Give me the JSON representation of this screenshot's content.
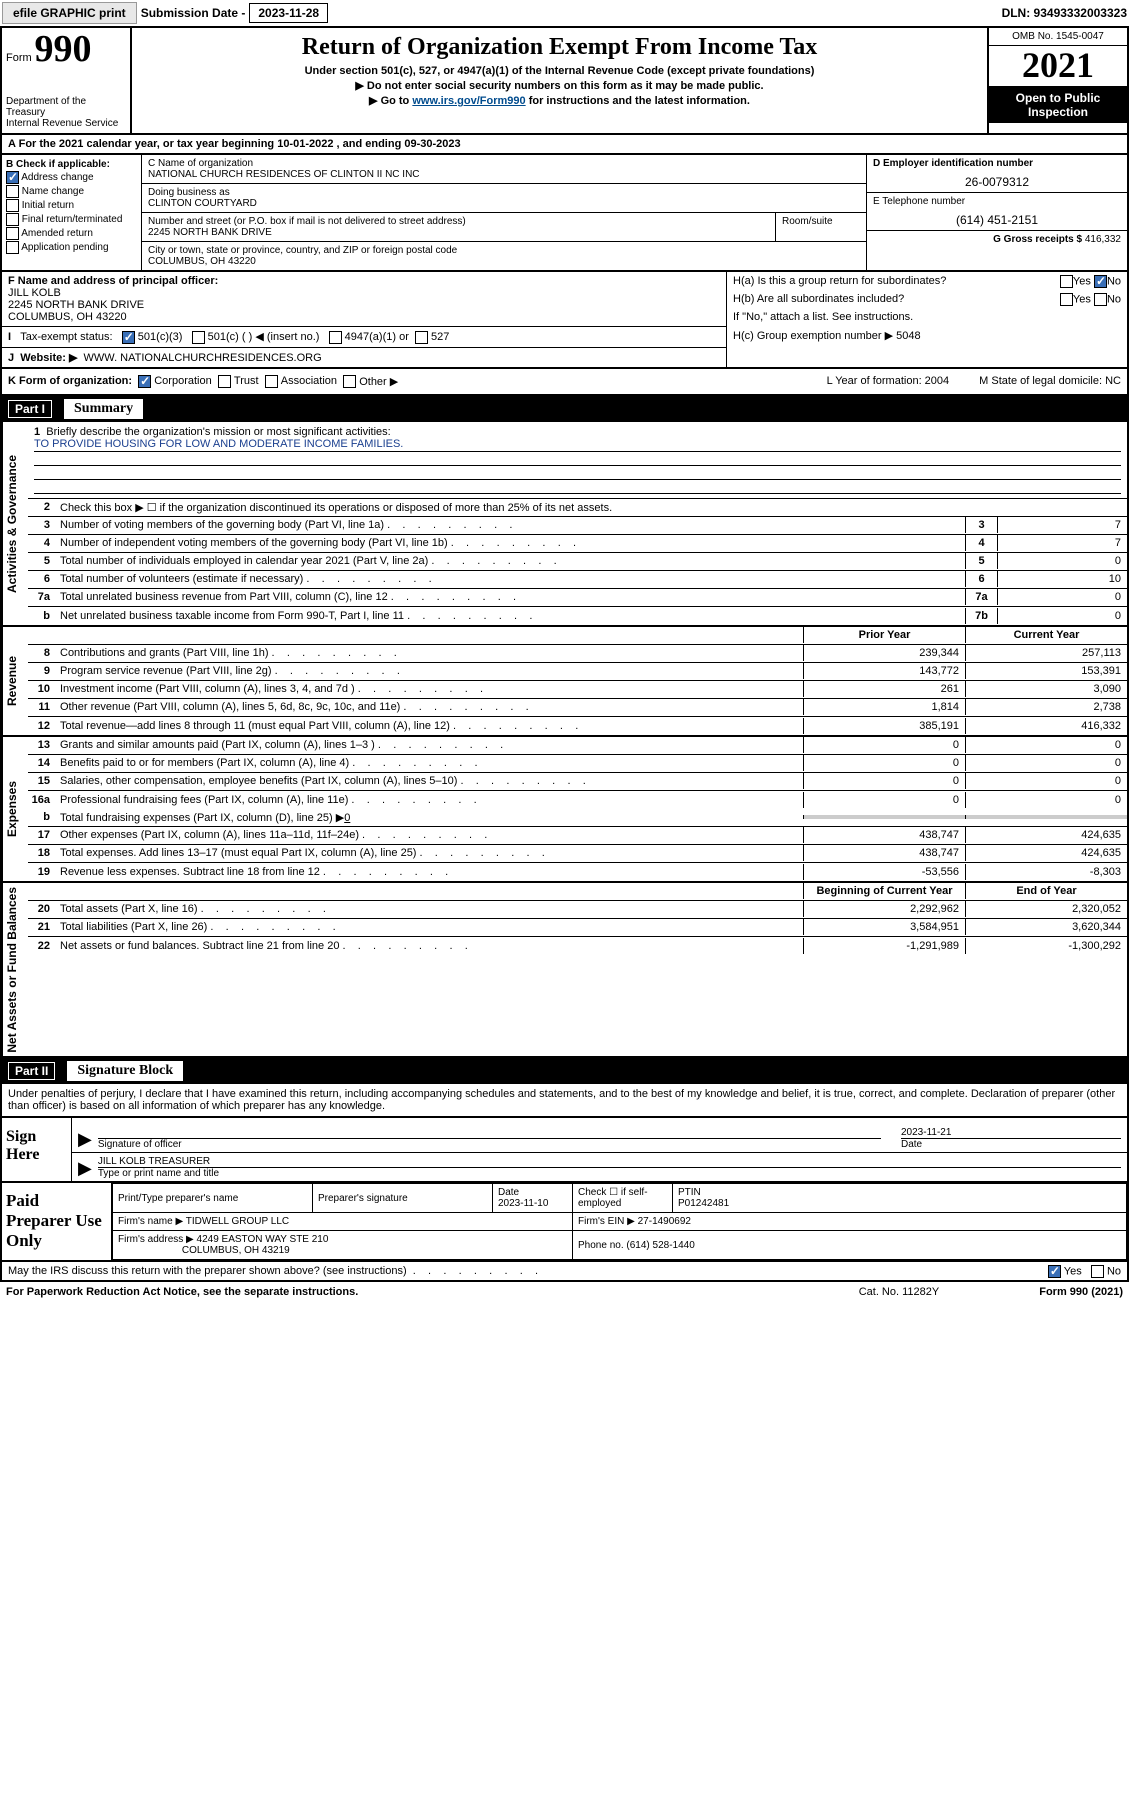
{
  "topbar": {
    "efile": "efile GRAPHIC print",
    "sub_label": "Submission Date - ",
    "sub_date": "2023-11-28",
    "dln": "DLN: 93493332003323"
  },
  "head": {
    "form_word": "Form",
    "form_num": "990",
    "dept": "Department of the Treasury",
    "irs": "Internal Revenue Service",
    "title": "Return of Organization Exempt From Income Tax",
    "sub1": "Under section 501(c), 527, or 4947(a)(1) of the Internal Revenue Code (except private foundations)",
    "sub2": "▶ Do not enter social security numbers on this form as it may be made public.",
    "sub3_pre": "▶ Go to ",
    "sub3_link": "www.irs.gov/Form990",
    "sub3_post": " for instructions and the latest information.",
    "omb": "OMB No. 1545-0047",
    "year": "2021",
    "inspect": "Open to Public Inspection"
  },
  "line_a": "For the 2021 calendar year, or tax year beginning 10-01-2022    , and ending 09-30-2023",
  "box_b": {
    "title": "B Check if applicable:",
    "items": [
      "Address change",
      "Name change",
      "Initial return",
      "Final return/terminated",
      "Amended return",
      "Application pending"
    ],
    "checked": [
      true,
      false,
      false,
      false,
      false,
      false
    ]
  },
  "box_c": {
    "name_label": "C Name of organization",
    "name": "NATIONAL CHURCH RESIDENCES OF CLINTON II NC INC",
    "dba_label": "Doing business as",
    "dba": "CLINTON COURTYARD",
    "addr_label": "Number and street (or P.O. box if mail is not delivered to street address)",
    "addr": "2245 NORTH BANK DRIVE",
    "room_label": "Room/suite",
    "city_label": "City or town, state or province, country, and ZIP or foreign postal code",
    "city": "COLUMBUS, OH  43220"
  },
  "box_d": {
    "ein_label": "D Employer identification number",
    "ein": "26-0079312",
    "tel_label": "E Telephone number",
    "tel": "(614) 451-2151",
    "gross_label": "G Gross receipts $ ",
    "gross": "416,332"
  },
  "box_f": {
    "label": "F Name and address of principal officer:",
    "name": "JILL KOLB",
    "addr1": "2245 NORTH BANK DRIVE",
    "addr2": "COLUMBUS, OH  43220"
  },
  "box_h": {
    "ha": "H(a)  Is this a group return for subordinates?",
    "hb": "H(b)  Are all subordinates included?",
    "hb_note": "If \"No,\" attach a list. See instructions.",
    "hc": "H(c)  Group exemption number ▶  5048",
    "yes": "Yes",
    "no": "No"
  },
  "line_i": {
    "label": "Tax-exempt status:",
    "opts": [
      "501(c)(3)",
      "501(c) (  ) ◀ (insert no.)",
      "4947(a)(1) or",
      "527"
    ]
  },
  "line_j": {
    "label": "Website: ▶",
    "val": "WWW. NATIONALCHURCHRESIDENCES.ORG"
  },
  "line_k": {
    "label": "K Form of organization:",
    "opts": [
      "Corporation",
      "Trust",
      "Association",
      "Other ▶"
    ],
    "l": "L Year of formation: 2004",
    "m": "M State of legal domicile: NC"
  },
  "parts": {
    "p1_label": "Part I",
    "p1_title": "Summary",
    "p2_label": "Part II",
    "p2_title": "Signature Block"
  },
  "summary": {
    "side1": "Activities & Governance",
    "side2": "Revenue",
    "side3": "Expenses",
    "side4": "Net Assets or Fund Balances",
    "q1": "Briefly describe the organization's mission or most significant activities:",
    "mission": "TO PROVIDE HOUSING FOR LOW AND MODERATE INCOME FAMILIES.",
    "q2": "Check this box ▶ ☐  if the organization discontinued its operations or disposed of more than 25% of its net assets.",
    "rows_gov": [
      {
        "n": "3",
        "d": "Number of voting members of the governing body (Part VI, line 1a)",
        "b": "3",
        "v": "7"
      },
      {
        "n": "4",
        "d": "Number of independent voting members of the governing body (Part VI, line 1b)",
        "b": "4",
        "v": "7"
      },
      {
        "n": "5",
        "d": "Total number of individuals employed in calendar year 2021 (Part V, line 2a)",
        "b": "5",
        "v": "0"
      },
      {
        "n": "6",
        "d": "Total number of volunteers (estimate if necessary)",
        "b": "6",
        "v": "10"
      },
      {
        "n": "7a",
        "d": "Total unrelated business revenue from Part VIII, column (C), line 12",
        "b": "7a",
        "v": "0"
      },
      {
        "n": "b",
        "d": "Net unrelated business taxable income from Form 990-T, Part I, line 11",
        "b": "7b",
        "v": "0"
      }
    ],
    "col_head_prior": "Prior Year",
    "col_head_curr": "Current Year",
    "col_head_beg": "Beginning of Current Year",
    "col_head_end": "End of Year",
    "rows_rev": [
      {
        "n": "8",
        "d": "Contributions and grants (Part VIII, line 1h)",
        "p": "239,344",
        "c": "257,113"
      },
      {
        "n": "9",
        "d": "Program service revenue (Part VIII, line 2g)",
        "p": "143,772",
        "c": "153,391"
      },
      {
        "n": "10",
        "d": "Investment income (Part VIII, column (A), lines 3, 4, and 7d )",
        "p": "261",
        "c": "3,090"
      },
      {
        "n": "11",
        "d": "Other revenue (Part VIII, column (A), lines 5, 6d, 8c, 9c, 10c, and 11e)",
        "p": "1,814",
        "c": "2,738"
      },
      {
        "n": "12",
        "d": "Total revenue—add lines 8 through 11 (must equal Part VIII, column (A), line 12)",
        "p": "385,191",
        "c": "416,332"
      }
    ],
    "rows_exp": [
      {
        "n": "13",
        "d": "Grants and similar amounts paid (Part IX, column (A), lines 1–3 )",
        "p": "0",
        "c": "0"
      },
      {
        "n": "14",
        "d": "Benefits paid to or for members (Part IX, column (A), line 4)",
        "p": "0",
        "c": "0"
      },
      {
        "n": "15",
        "d": "Salaries, other compensation, employee benefits (Part IX, column (A), lines 5–10)",
        "p": "0",
        "c": "0"
      },
      {
        "n": "16a",
        "d": "Professional fundraising fees (Part IX, column (A), line 11e)",
        "p": "0",
        "c": "0"
      }
    ],
    "row_16b": {
      "n": "b",
      "d": "Total fundraising expenses (Part IX, column (D), line 25) ▶",
      "v": "0"
    },
    "rows_exp2": [
      {
        "n": "17",
        "d": "Other expenses (Part IX, column (A), lines 11a–11d, 11f–24e)",
        "p": "438,747",
        "c": "424,635"
      },
      {
        "n": "18",
        "d": "Total expenses. Add lines 13–17 (must equal Part IX, column (A), line 25)",
        "p": "438,747",
        "c": "424,635"
      },
      {
        "n": "19",
        "d": "Revenue less expenses. Subtract line 18 from line 12",
        "p": "-53,556",
        "c": "-8,303"
      }
    ],
    "rows_net": [
      {
        "n": "20",
        "d": "Total assets (Part X, line 16)",
        "p": "2,292,962",
        "c": "2,320,052"
      },
      {
        "n": "21",
        "d": "Total liabilities (Part X, line 26)",
        "p": "3,584,951",
        "c": "3,620,344"
      },
      {
        "n": "22",
        "d": "Net assets or fund balances. Subtract line 21 from line 20",
        "p": "-1,291,989",
        "c": "-1,300,292"
      }
    ]
  },
  "sig": {
    "intro": "Under penalties of perjury, I declare that I have examined this return, including accompanying schedules and statements, and to the best of my knowledge and belief, it is true, correct, and complete. Declaration of preparer (other than officer) is based on all information of which preparer has any knowledge.",
    "sign_here": "Sign Here",
    "sig_officer": "Signature of officer",
    "date": "Date",
    "sig_date": "2023-11-21",
    "name_title": "JILL KOLB  TREASURER",
    "name_title_label": "Type or print name and title"
  },
  "prep": {
    "label": "Paid Preparer Use Only",
    "h_name": "Print/Type preparer's name",
    "h_sig": "Preparer's signature",
    "h_date": "Date",
    "date": "2023-11-10",
    "h_check": "Check ☐ if self-employed",
    "h_ptin": "PTIN",
    "ptin": "P01242481",
    "firm_name_l": "Firm's name    ▶",
    "firm_name": "TIDWELL GROUP LLC",
    "firm_ein_l": "Firm's EIN ▶",
    "firm_ein": "27-1490692",
    "firm_addr_l": "Firm's address ▶",
    "firm_addr1": "4249 EASTON WAY STE 210",
    "firm_addr2": "COLUMBUS, OH  43219",
    "phone_l": "Phone no.",
    "phone": "(614) 528-1440"
  },
  "footer": {
    "discuss": "May the IRS discuss this return with the preparer shown above? (see instructions)",
    "paperwork": "For Paperwork Reduction Act Notice, see the separate instructions.",
    "cat": "Cat. No. 11282Y",
    "form": "Form 990 (2021)"
  }
}
